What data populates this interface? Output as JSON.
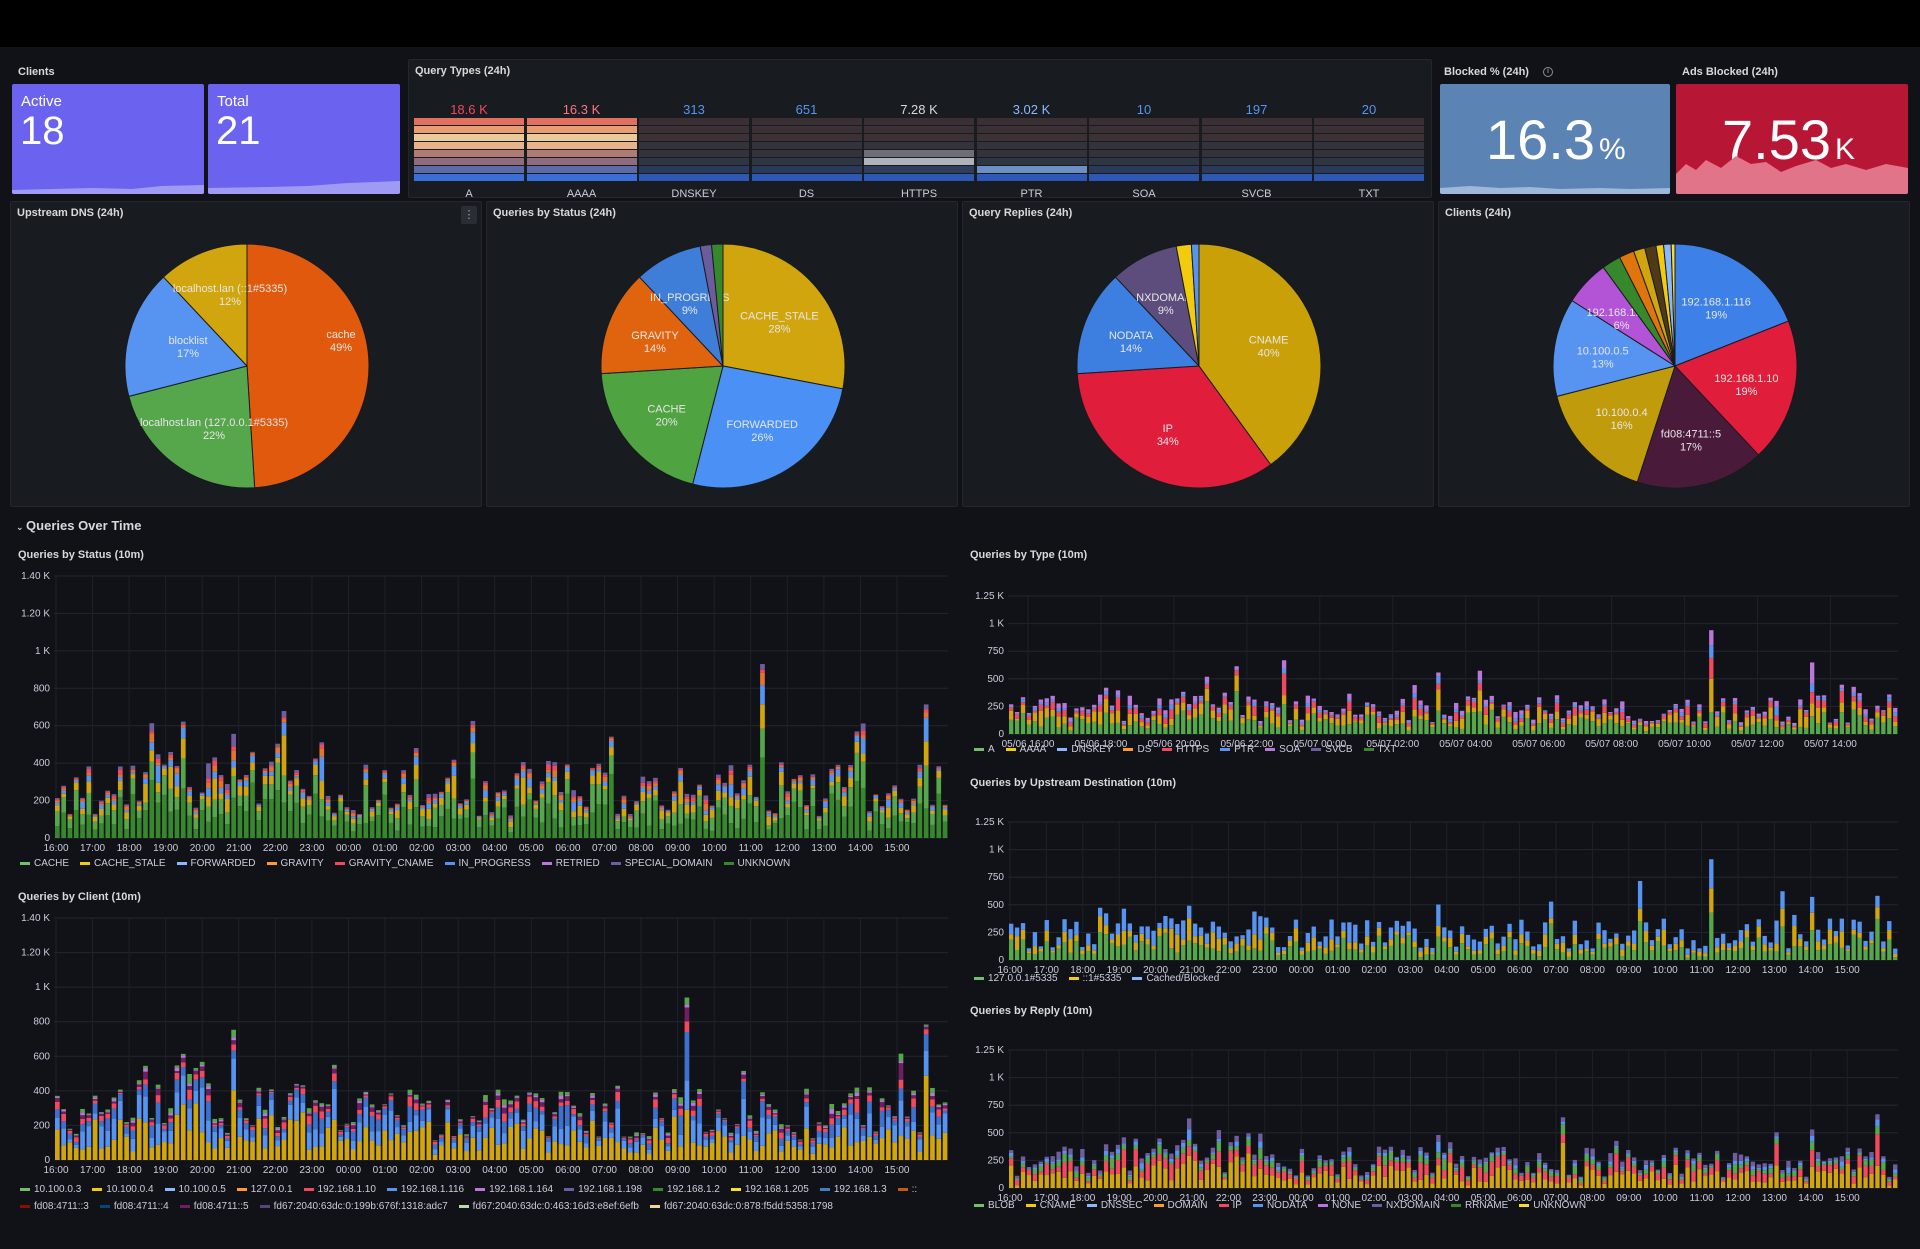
{
  "clients_panel": {
    "title": "Clients",
    "active_label": "Active",
    "active_value": "18",
    "total_label": "Total",
    "total_value": "21"
  },
  "query_types_24h": {
    "title": "Query Types (24h)",
    "items": [
      {
        "label": "A",
        "value": "18.6 K",
        "color": "#f2495c"
      },
      {
        "label": "AAAA",
        "value": "16.3 K",
        "color": "#ff7383"
      },
      {
        "label": "DNSKEY",
        "value": "313",
        "color": "#5794f2"
      },
      {
        "label": "DS",
        "value": "651",
        "color": "#5794f2"
      },
      {
        "label": "HTTPS",
        "value": "7.28 K",
        "color": "#d8d9da"
      },
      {
        "label": "PTR",
        "value": "3.02 K",
        "color": "#8ab8ff"
      },
      {
        "label": "SOA",
        "value": "10",
        "color": "#5794f2"
      },
      {
        "label": "SVCB",
        "value": "197",
        "color": "#5794f2"
      },
      {
        "label": "TXT",
        "value": "20",
        "color": "#5794f2"
      }
    ]
  },
  "blocked_pct": {
    "title": "Blocked % (24h)",
    "value": "16.3",
    "unit": "%",
    "color": "#5b84b4"
  },
  "ads_blocked": {
    "title": "Ads Blocked (24h)",
    "value": "7.53",
    "unit": "K",
    "color": "#b71734"
  },
  "pies": [
    {
      "title": "Upstream DNS (24h)",
      "slices": [
        {
          "label": "cache",
          "pct": 49,
          "color": "#e0590d"
        },
        {
          "label": "localhost.lan (127.0.0.1#5335)",
          "pct": 22,
          "color": "#56a64b"
        },
        {
          "label": "blocklist",
          "pct": 17,
          "color": "#5794f2"
        },
        {
          "label": "localhost.lan (::1#5335)",
          "pct": 12,
          "color": "#d0a50d"
        }
      ]
    },
    {
      "title": "Queries by Status (24h)",
      "slices": [
        {
          "label": "CACHE_STALE",
          "pct": 28,
          "color": "#d0a50d"
        },
        {
          "label": "FORWARDED",
          "pct": 26,
          "color": "#4a90f5"
        },
        {
          "label": "CACHE",
          "pct": 20,
          "color": "#4fa340"
        },
        {
          "label": "GRAVITY",
          "pct": 14,
          "color": "#e0640d"
        },
        {
          "label": "IN_PROGRESS",
          "pct": 9,
          "color": "#3e7ed8"
        },
        {
          "label": "",
          "pct": 1.5,
          "color": "#6b5c9e"
        },
        {
          "label": "",
          "pct": 1.5,
          "color": "#37872d"
        }
      ]
    },
    {
      "title": "Query Replies (24h)",
      "slices": [
        {
          "label": "CNAME",
          "pct": 40,
          "color": "#c9a008"
        },
        {
          "label": "IP",
          "pct": 34,
          "color": "#e11d3c"
        },
        {
          "label": "NODATA",
          "pct": 14,
          "color": "#3d7fe0"
        },
        {
          "label": "NXDOMAIN",
          "pct": 9,
          "color": "#5c4d7d"
        },
        {
          "label": "",
          "pct": 2,
          "color": "#f2cc0c"
        },
        {
          "label": "",
          "pct": 1,
          "color": "#5794f2"
        }
      ]
    },
    {
      "title": "Clients (24h)",
      "slices": [
        {
          "label": "192.168.1.116",
          "pct": 19,
          "color": "#3d81e8"
        },
        {
          "label": "192.168.1.10",
          "pct": 19,
          "color": "#e11d3c"
        },
        {
          "label": "fd08:4711::5",
          "pct": 17,
          "color": "#4a1a3b"
        },
        {
          "label": "10.100.0.4",
          "pct": 16,
          "color": "#c09b0c"
        },
        {
          "label": "10.100.0.5",
          "pct": 13,
          "color": "#5794f2"
        },
        {
          "label": "192.168.1.164",
          "pct": 6,
          "color": "#b353d6"
        },
        {
          "label": "",
          "pct": 2.5,
          "color": "#37872d"
        },
        {
          "label": "",
          "pct": 2,
          "color": "#e0750d"
        },
        {
          "label": "",
          "pct": 1.5,
          "color": "#d0a50d"
        },
        {
          "label": "",
          "pct": 1.5,
          "color": "#4e3a18"
        },
        {
          "label": "",
          "pct": 1,
          "color": "#f2cc0c"
        },
        {
          "label": "",
          "pct": 1,
          "color": "#8ab8ff"
        },
        {
          "label": "",
          "pct": 0.5,
          "color": "#fade2a"
        }
      ]
    }
  ],
  "row_title": "Queries Over Time",
  "bar_charts": [
    {
      "title": "Queries by Status (10m)",
      "yticks": [
        "0",
        "200",
        "400",
        "600",
        "800",
        "1 K",
        "1.20 K",
        "1.40 K"
      ],
      "xticks": [
        "16:00",
        "17:00",
        "18:00",
        "19:00",
        "20:00",
        "21:00",
        "22:00",
        "23:00",
        "00:00",
        "01:00",
        "02:00",
        "03:00",
        "04:00",
        "05:00",
        "06:00",
        "07:00",
        "08:00",
        "09:00",
        "10:00",
        "11:00",
        "12:00",
        "13:00",
        "14:00",
        "15:00"
      ],
      "legend": [
        {
          "label": "CACHE",
          "color": "#73bf69"
        },
        {
          "label": "CACHE_STALE",
          "color": "#f2cc0c"
        },
        {
          "label": "FORWARDED",
          "color": "#8ab8ff"
        },
        {
          "label": "GRAVITY",
          "color": "#ff9830"
        },
        {
          "label": "GRAVITY_CNAME",
          "color": "#f2495c"
        },
        {
          "label": "IN_PROGRESS",
          "color": "#5794f2"
        },
        {
          "label": "RETRIED",
          "color": "#b877d9"
        },
        {
          "label": "SPECIAL_DOMAIN",
          "color": "#705da0"
        },
        {
          "label": "UNKNOWN",
          "color": "#37872d"
        }
      ]
    },
    {
      "title": "Queries by Client (10m)",
      "yticks": [
        "0",
        "200",
        "400",
        "600",
        "800",
        "1 K",
        "1.20 K",
        "1.40 K"
      ],
      "xticks": [
        "16:00",
        "17:00",
        "18:00",
        "19:00",
        "20:00",
        "21:00",
        "22:00",
        "23:00",
        "00:00",
        "01:00",
        "02:00",
        "03:00",
        "04:00",
        "05:00",
        "06:00",
        "07:00",
        "08:00",
        "09:00",
        "10:00",
        "11:00",
        "12:00",
        "13:00",
        "14:00",
        "15:00"
      ],
      "legend": [
        {
          "label": "10.100.0.3",
          "color": "#73bf69"
        },
        {
          "label": "10.100.0.4",
          "color": "#f2cc0c"
        },
        {
          "label": "10.100.0.5",
          "color": "#8ab8ff"
        },
        {
          "label": "127.0.0.1",
          "color": "#ff9830"
        },
        {
          "label": "192.168.1.10",
          "color": "#f2495c"
        },
        {
          "label": "192.168.1.116",
          "color": "#5794f2"
        },
        {
          "label": "192.168.1.164",
          "color": "#b877d9"
        },
        {
          "label": "192.168.1.198",
          "color": "#705da0"
        },
        {
          "label": "192.168.1.2",
          "color": "#37872d"
        },
        {
          "label": "192.168.1.205",
          "color": "#fade2a"
        },
        {
          "label": "192.168.1.3",
          "color": "#447ebc"
        },
        {
          "label": "::",
          "color": "#c15c17"
        },
        {
          "label": "fd08:4711::3",
          "color": "#890f02"
        },
        {
          "label": "fd08:4711::4",
          "color": "#0a437c"
        },
        {
          "label": "fd08:4711::5",
          "color": "#6d1f62"
        },
        {
          "label": "fd67:2040:63dc:0:199b:676f:1318:adc7",
          "color": "#584477"
        },
        {
          "label": "fd67:2040:63dc:0:463:16d3:e8ef:6efb",
          "color": "#b7dbab"
        },
        {
          "label": "fd67:2040:63dc:0:878:f5dd:5358:1798",
          "color": "#f4d598"
        }
      ]
    },
    {
      "title": "Queries by Type (10m)",
      "yticks": [
        "0",
        "250",
        "500",
        "750",
        "1 K",
        "1.25 K"
      ],
      "xticks": [
        "05/06 16:00",
        "05/06 18:00",
        "05/06 20:00",
        "05/06 22:00",
        "05/07 00:00",
        "05/07 02:00",
        "05/07 04:00",
        "05/07 06:00",
        "05/07 08:00",
        "05/07 10:00",
        "05/07 12:00",
        "05/07 14:00"
      ],
      "legend": [
        {
          "label": "A",
          "color": "#73bf69"
        },
        {
          "label": "AAAA",
          "color": "#f2cc0c"
        },
        {
          "label": "DNSKEY",
          "color": "#8ab8ff"
        },
        {
          "label": "DS",
          "color": "#ff9830"
        },
        {
          "label": "HTTPS",
          "color": "#f2495c"
        },
        {
          "label": "PTR",
          "color": "#5794f2"
        },
        {
          "label": "SOA",
          "color": "#b877d9"
        },
        {
          "label": "SVCB",
          "color": "#705da0"
        },
        {
          "label": "TXT",
          "color": "#37872d"
        }
      ]
    },
    {
      "title": "Queries by Upstream Destination (10m)",
      "yticks": [
        "0",
        "250",
        "500",
        "750",
        "1 K",
        "1.25 K"
      ],
      "xticks": [
        "16:00",
        "17:00",
        "18:00",
        "19:00",
        "20:00",
        "21:00",
        "22:00",
        "23:00",
        "00:00",
        "01:00",
        "02:00",
        "03:00",
        "04:00",
        "05:00",
        "06:00",
        "07:00",
        "08:00",
        "09:00",
        "10:00",
        "11:00",
        "12:00",
        "13:00",
        "14:00",
        "15:00"
      ],
      "legend": [
        {
          "label": "127.0.0.1#5335",
          "color": "#73bf69"
        },
        {
          "label": "::1#5335",
          "color": "#f2cc0c"
        },
        {
          "label": "Cached/Blocked",
          "color": "#8ab8ff"
        }
      ]
    },
    {
      "title": "Queries by Reply (10m)",
      "yticks": [
        "0",
        "250",
        "500",
        "750",
        "1 K",
        "1.25 K"
      ],
      "xticks": [
        "16:00",
        "17:00",
        "18:00",
        "19:00",
        "20:00",
        "21:00",
        "22:00",
        "23:00",
        "00:00",
        "01:00",
        "02:00",
        "03:00",
        "04:00",
        "05:00",
        "06:00",
        "07:00",
        "08:00",
        "09:00",
        "10:00",
        "11:00",
        "12:00",
        "13:00",
        "14:00",
        "15:00"
      ],
      "legend": [
        {
          "label": "BLOB",
          "color": "#73bf69"
        },
        {
          "label": "CNAME",
          "color": "#f2cc0c"
        },
        {
          "label": "DNSSEC",
          "color": "#8ab8ff"
        },
        {
          "label": "DOMAIN",
          "color": "#ff9830"
        },
        {
          "label": "IP",
          "color": "#f2495c"
        },
        {
          "label": "NODATA",
          "color": "#5794f2"
        },
        {
          "label": "NONE",
          "color": "#b877d9"
        },
        {
          "label": "NXDOMAIN",
          "color": "#705da0"
        },
        {
          "label": "RRNAME",
          "color": "#37872d"
        },
        {
          "label": "UNKNOWN",
          "color": "#fade2a"
        }
      ]
    }
  ]
}
